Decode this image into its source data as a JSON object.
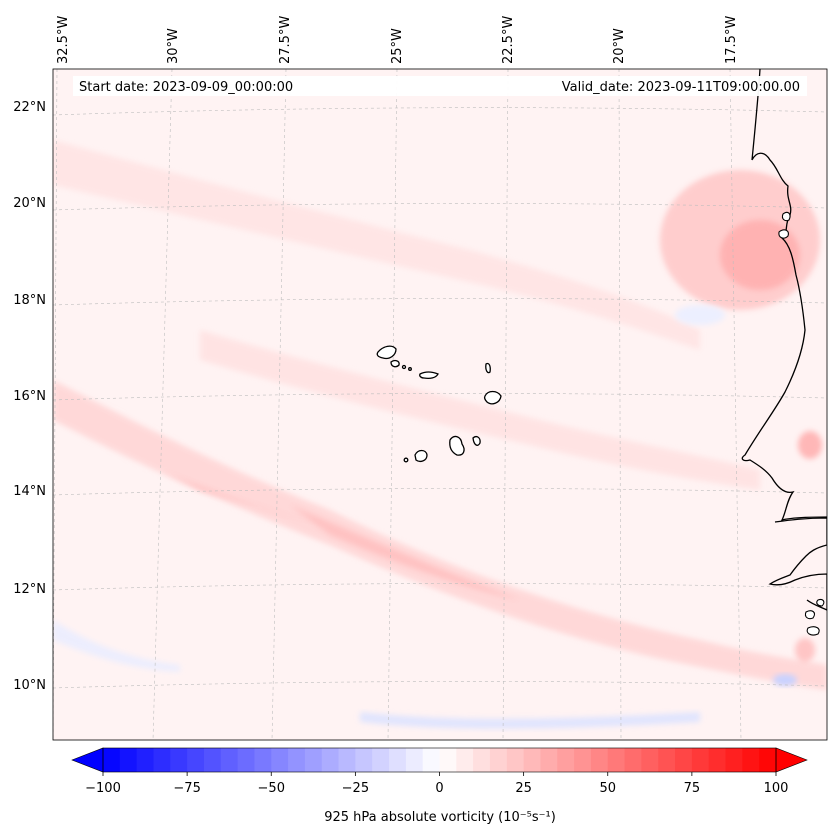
{
  "map": {
    "annotation": {
      "start_date": "Start date: 2023-09-09_00:00:00",
      "valid_date": "Valid_date: 2023-09-11T09:00:00.00"
    },
    "lon_labels": [
      "32.5°W",
      "30°W",
      "27.5°W",
      "25°W",
      "22.5°W",
      "20°W",
      "17.5°W"
    ],
    "lat_labels": [
      "22°N",
      "20°N",
      "18°N",
      "16°N",
      "14°N",
      "12°N",
      "10°N"
    ],
    "islands": [
      "Santo Antão",
      "São Vicente",
      "Santa Luzia",
      "São Nicolau",
      "Sal",
      "Boa Vista",
      "Maio",
      "Santiago",
      "Fogo",
      "Brava"
    ],
    "colors": {
      "positive": "#ff0000",
      "negative": "#0000ff",
      "neutral": "#ffffff",
      "coastline": "#000000",
      "gridline": "#bbbbbb"
    }
  },
  "colorbar": {
    "label": "925 hPa absolute vorticity (10⁻⁵s⁻¹)",
    "ticks": [
      "−100",
      "−75",
      "−50",
      "−25",
      "0",
      "25",
      "50",
      "75",
      "100"
    ],
    "tick_values": [
      -100,
      -75,
      -50,
      -25,
      0,
      25,
      50,
      75,
      100
    ],
    "min": -100,
    "max": 100,
    "step": 5
  }
}
